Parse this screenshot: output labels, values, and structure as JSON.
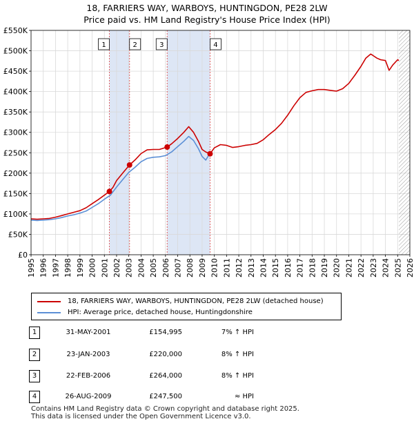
{
  "title_line1": "18, FARRIERS WAY, WARBOYS, HUNTINGDON, PE28 2LW",
  "title_line2": "Price paid vs. HM Land Registry's House Price Index (HPI)",
  "colors": {
    "property": "#cc0000",
    "hpi": "#5b8fd6",
    "shade": "#dde6f5",
    "grid": "#d9d9d9",
    "marker_line": "#e06060",
    "hatch": "#999999"
  },
  "legend": {
    "property_label": "18, FARRIERS WAY, WARBOYS, HUNTINGDON, PE28 2LW (detached house)",
    "hpi_label": "HPI: Average price, detached house, Huntingdonshire"
  },
  "transactions": [
    {
      "num": "1",
      "date": "31-MAY-2001",
      "price": "£154,995",
      "hpi": "7% ↑ HPI"
    },
    {
      "num": "2",
      "date": "23-JAN-2003",
      "price": "£220,000",
      "hpi": "8% ↑ HPI"
    },
    {
      "num": "3",
      "date": "22-FEB-2006",
      "price": "£264,000",
      "hpi": "8% ↑ HPI"
    },
    {
      "num": "4",
      "date": "26-AUG-2009",
      "price": "£247,500",
      "hpi": "≈ HPI"
    }
  ],
  "footer": {
    "line1": "Contains HM Land Registry data © Crown copyright and database right 2025.",
    "line2": "This data is licensed under the Open Government Licence v3.0."
  },
  "chart_data": {
    "type": "line",
    "title": "18, FARRIERS WAY, WARBOYS, HUNTINGDON, PE28 2LW — Price paid vs. HM Land Registry's House Price Index (HPI)",
    "xlabel": "",
    "ylabel": "",
    "xlim": [
      1995,
      2026
    ],
    "ylim": [
      0,
      550000
    ],
    "grid": true,
    "legend_position": "below",
    "y_ticks": [
      {
        "value": 0,
        "label": "£0"
      },
      {
        "value": 50000,
        "label": "£50K"
      },
      {
        "value": 100000,
        "label": "£100K"
      },
      {
        "value": 150000,
        "label": "£150K"
      },
      {
        "value": 200000,
        "label": "£200K"
      },
      {
        "value": 250000,
        "label": "£250K"
      },
      {
        "value": 300000,
        "label": "£300K"
      },
      {
        "value": 350000,
        "label": "£350K"
      },
      {
        "value": 400000,
        "label": "£400K"
      },
      {
        "value": 450000,
        "label": "£450K"
      },
      {
        "value": 500000,
        "label": "£500K"
      },
      {
        "value": 550000,
        "label": "£550K"
      }
    ],
    "x_ticks": [
      "1995",
      "1996",
      "1997",
      "1998",
      "1999",
      "2000",
      "2001",
      "2002",
      "2003",
      "2004",
      "2005",
      "2006",
      "2007",
      "2008",
      "2009",
      "2010",
      "2011",
      "2012",
      "2013",
      "2014",
      "2015",
      "2016",
      "2017",
      "2018",
      "2019",
      "2020",
      "2021",
      "2022",
      "2023",
      "2024",
      "2025",
      "2026"
    ],
    "shaded_periods": [
      {
        "from": 2001.41,
        "to": 2003.06
      },
      {
        "from": 2006.14,
        "to": 2009.65
      }
    ],
    "forecast_from": 2025.1,
    "sales": [
      {
        "label": "1",
        "x": 2001.41,
        "y": 154995
      },
      {
        "label": "2",
        "x": 2003.06,
        "y": 220000
      },
      {
        "label": "3",
        "x": 2006.14,
        "y": 264000
      },
      {
        "label": "4",
        "x": 2009.65,
        "y": 247500
      }
    ],
    "series": [
      {
        "name": "18, FARRIERS WAY, WARBOYS, HUNTINGDON, PE28 2LW (detached house)",
        "x": [
          1995.0,
          1995.5,
          1996.0,
          1996.5,
          1997.0,
          1997.5,
          1998.0,
          1998.5,
          1999.0,
          1999.5,
          2000.0,
          2000.5,
          2001.0,
          2001.41,
          2001.7,
          2002.0,
          2002.5,
          2003.06,
          2003.5,
          2004.0,
          2004.5,
          2005.0,
          2005.5,
          2006.14,
          2006.5,
          2007.0,
          2007.5,
          2007.9,
          2008.3,
          2008.7,
          2009.0,
          2009.3,
          2009.65,
          2010.0,
          2010.5,
          2011.0,
          2011.5,
          2012.0,
          2012.5,
          2013.0,
          2013.5,
          2014.0,
          2014.5,
          2015.0,
          2015.5,
          2016.0,
          2016.5,
          2017.0,
          2017.5,
          2018.0,
          2018.5,
          2019.0,
          2019.5,
          2020.0,
          2020.5,
          2021.0,
          2021.5,
          2022.0,
          2022.4,
          2022.8,
          2023.0,
          2023.3,
          2023.6,
          2024.0,
          2024.3,
          2024.6,
          2025.0,
          2025.1
        ],
        "values": [
          88000,
          87000,
          88000,
          89000,
          92000,
          96000,
          100000,
          104000,
          108000,
          115000,
          125000,
          135000,
          146000,
          154995,
          165000,
          182000,
          200000,
          220000,
          232000,
          248000,
          257000,
          258000,
          258000,
          264000,
          272000,
          285000,
          300000,
          314000,
          300000,
          278000,
          258000,
          252000,
          247500,
          262000,
          270000,
          268000,
          263000,
          265000,
          268000,
          270000,
          273000,
          282000,
          295000,
          307000,
          322000,
          342000,
          365000,
          385000,
          398000,
          402000,
          405000,
          405000,
          403000,
          401000,
          407000,
          420000,
          440000,
          462000,
          482000,
          492000,
          488000,
          482000,
          478000,
          476000,
          452000,
          465000,
          478000,
          476000
        ]
      },
      {
        "name": "HPI: Average price, detached house, Huntingdonshire",
        "x": [
          1995.0,
          1995.5,
          1996.0,
          1996.5,
          1997.0,
          1997.5,
          1998.0,
          1998.5,
          1999.0,
          1999.5,
          2000.0,
          2000.5,
          2001.0,
          2001.5,
          2002.0,
          2002.5,
          2003.0,
          2003.5,
          2004.0,
          2004.5,
          2005.0,
          2005.5,
          2006.0,
          2006.5,
          2007.0,
          2007.5,
          2007.9,
          2008.3,
          2008.7,
          2009.0,
          2009.3,
          2009.6
        ],
        "values": [
          85000,
          84000,
          85000,
          86000,
          88000,
          91000,
          95000,
          98000,
          102000,
          107000,
          116000,
          125000,
          136000,
          146000,
          166000,
          184000,
          202000,
          214000,
          228000,
          236000,
          239000,
          240000,
          243000,
          252000,
          265000,
          278000,
          290000,
          280000,
          260000,
          241000,
          232000,
          247000
        ]
      }
    ]
  }
}
